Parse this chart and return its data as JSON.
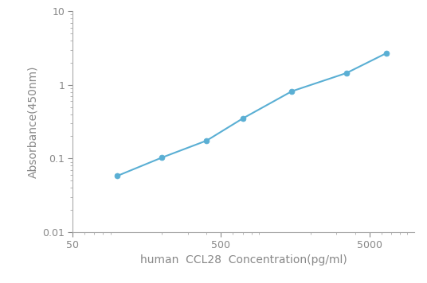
{
  "x": [
    100,
    200,
    400,
    700,
    1500,
    3500,
    6500
  ],
  "y": [
    0.058,
    0.103,
    0.175,
    0.35,
    0.82,
    1.45,
    2.7
  ],
  "line_color": "#5aafd4",
  "marker_color": "#5aafd4",
  "marker_size": 5,
  "line_width": 1.5,
  "xlabel": "human  CCL28  Concentration(pg/ml)",
  "ylabel": "Absorbance(450nm)",
  "xlim": [
    50,
    10000
  ],
  "ylim": [
    0.01,
    10
  ],
  "xticks": [
    50,
    500,
    5000
  ],
  "yticks": [
    0.01,
    0.1,
    1,
    10
  ],
  "background_color": "#ffffff",
  "xlabel_fontsize": 10,
  "ylabel_fontsize": 10,
  "tick_fontsize": 9,
  "spine_color": "#aaaaaa",
  "tick_color": "#888888"
}
